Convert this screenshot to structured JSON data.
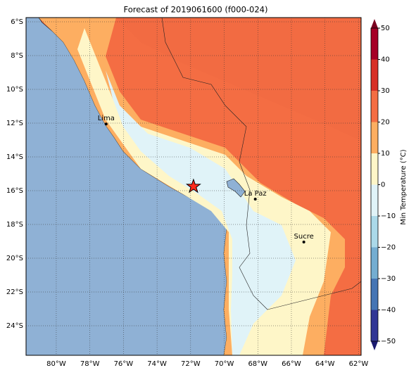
{
  "title": "Forecast of 2019061600 (f000-024)",
  "map": {
    "xlim": [
      -81.8,
      -61.85
    ],
    "ylim": [
      -25.75,
      -5.75
    ],
    "lon_ticks": [
      {
        "value": -80,
        "label": "80°W"
      },
      {
        "value": -78,
        "label": "78°W"
      },
      {
        "value": -76,
        "label": "76°W"
      },
      {
        "value": -74,
        "label": "74°W"
      },
      {
        "value": -72,
        "label": "72°W"
      },
      {
        "value": -70,
        "label": "70°W"
      },
      {
        "value": -68,
        "label": "68°W"
      },
      {
        "value": -66,
        "label": "66°W"
      },
      {
        "value": -64,
        "label": "64°W"
      },
      {
        "value": -62,
        "label": "62°W"
      }
    ],
    "lat_ticks": [
      {
        "value": -6,
        "label": "6°S"
      },
      {
        "value": -8,
        "label": "8°S"
      },
      {
        "value": -10,
        "label": "10°S"
      },
      {
        "value": -12,
        "label": "12°S"
      },
      {
        "value": -14,
        "label": "14°S"
      },
      {
        "value": -16,
        "label": "16°S"
      },
      {
        "value": -18,
        "label": "18°S"
      },
      {
        "value": -20,
        "label": "20°S"
      },
      {
        "value": -22,
        "label": "22°S"
      },
      {
        "value": -24,
        "label": "24°S"
      }
    ],
    "cities": [
      {
        "name": "Lima",
        "lon": -77.03,
        "lat": -12.05
      },
      {
        "name": "La Paz",
        "lon": -68.15,
        "lat": -16.5
      },
      {
        "name": "Sucre",
        "lon": -65.26,
        "lat": -19.04
      }
    ],
    "marker": {
      "lon": -71.83,
      "lat": -15.75,
      "color": "#ff2a1a"
    }
  },
  "colorbar": {
    "label": "Min Temperature (°C)",
    "lim": [
      -50,
      50
    ],
    "ticks": [
      {
        "value": -50,
        "label": "−50"
      },
      {
        "value": -40,
        "label": "−40"
      },
      {
        "value": -30,
        "label": "−30"
      },
      {
        "value": -20,
        "label": "−20"
      },
      {
        "value": -10,
        "label": "−10"
      },
      0,
      10,
      20,
      30,
      40,
      50
    ],
    "colors": [
      "#313695",
      "#4575b4",
      "#74add1",
      "#abd9e9",
      "#e0f3f8",
      "#fef6c8",
      "#fdae61",
      "#f46d43",
      "#d73027",
      "#a50026"
    ],
    "extend_colors": [
      "#1a1a70",
      "#7a0020"
    ]
  }
}
